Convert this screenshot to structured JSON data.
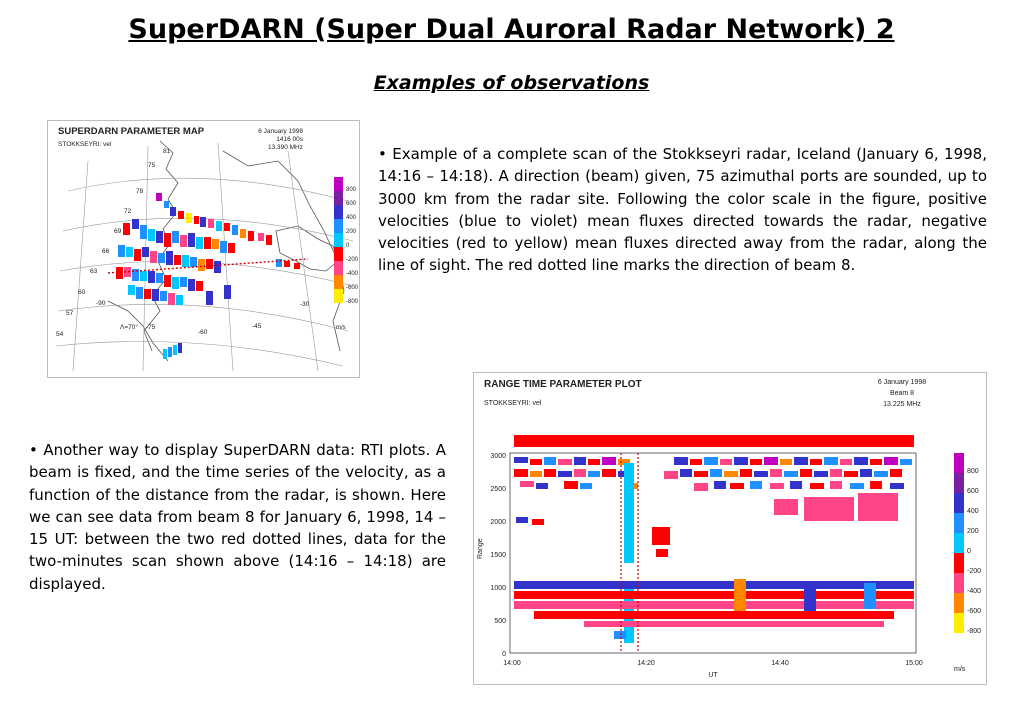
{
  "title": "SuperDARN (Super Dual Auroral Radar Network) 2",
  "subtitle": "Examples of observations",
  "paragraph1": "• Example of a complete scan of the Stokkseyri radar, Iceland (January 6, 1998, 14:16 – 14:18). A direction (beam) given, 75 azimuthal ports are sounded, up to 3000 km from the radar site. Following the color scale in the figure, positive velocities (blue to violet) mean fluxes directed towards the radar, negative velocities (red to yellow) mean fluxes directed away from the radar, along the line of sight. The red dotted line marks the direction of beam 8.",
  "paragraph2": "• Another way to display SuperDARN data: RTI plots. A beam is fixed, and the time series of the velocity, as a function of the distance from the radar, is shown. Here we can see data from beam 8 for January 6, 1998, 14 – 15 UT: between the two red dotted lines, data for the two-minutes scan shown above (14:16 – 14:18) are displayed.",
  "map_plot": {
    "title": "SUPERDARN PARAMETER MAP",
    "station": "STOKKSEYRI: vel",
    "date": "6 January 1998",
    "time": "1416 00s",
    "freq": "13.390 MHz",
    "lat_labels": [
      "81",
      "75",
      "78",
      "72",
      "69",
      "66",
      "63",
      "60",
      "57",
      "54"
    ],
    "lon_labels": [
      "-90",
      "-75",
      "-60",
      "-45",
      "-30"
    ],
    "lambda_label": "Λ=70°",
    "scale_ticks": [
      "800",
      "600",
      "400",
      "200",
      "0",
      "-200",
      "-400",
      "-600",
      "-800"
    ],
    "scale_unit": "m/s"
  },
  "rti_plot": {
    "title": "RANGE TIME PARAMETER PLOT",
    "station": "STOKKSEYRI: vel",
    "date": "6 January 1998",
    "beam": "Beam 8",
    "freq": "13.225 MHz",
    "ylabel": "Range",
    "xlabel": "UT",
    "y_ticks": [
      "3000",
      "2500",
      "2000",
      "1500",
      "1000",
      "500",
      "0"
    ],
    "x_ticks": [
      "14:00",
      "14:20",
      "14:40",
      "15:00"
    ],
    "scale_ticks": [
      "800",
      "600",
      "400",
      "200",
      "0",
      "-200",
      "-400",
      "-600",
      "-800"
    ],
    "scale_unit": "m/s"
  },
  "colors": {
    "scale": [
      "#c000c0",
      "#7a1fa2",
      "#3333cc",
      "#1e90ff",
      "#00c8ff",
      "#ff0000",
      "#ff4488",
      "#ff8800",
      "#ffee00"
    ],
    "dotted_line": "#d00000"
  }
}
